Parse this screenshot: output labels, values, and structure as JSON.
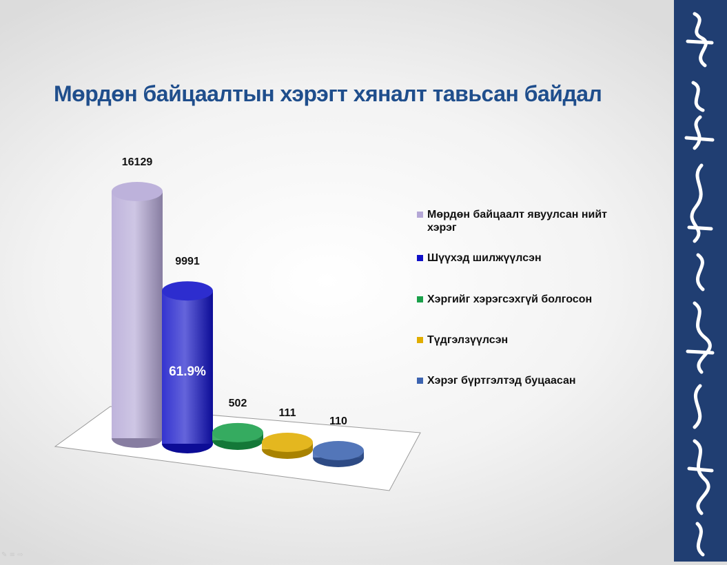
{
  "title": "Мөрдөн байцаалтын хэрэгт хяналт тавьсан байдал",
  "chart_data": {
    "type": "bar",
    "title": "Мөрдөн байцаалтын хэрэгт хяналт тавьсан байдал",
    "categories": [
      "Мөрдөн байцаалт явуулсан нийт хэрэг",
      "Шүүхэд шилжүүлсэн",
      "Хэргийг хэрэгсэхгүй болгосон",
      "Түдгэлзүүлсэн",
      "Хэрэг бүртгэлтэд буцаасан"
    ],
    "values": [
      16129,
      9991,
      502,
      111,
      110
    ],
    "value_labels": [
      "16129",
      "9991",
      "502",
      "111",
      "110"
    ],
    "colors": [
      "#b4a7d6",
      "#1010c8",
      "#1aa04a",
      "#e0ad00",
      "#3c63b0"
    ],
    "annotation": "61.9%",
    "legend_position": "right",
    "grid": false
  },
  "legend": [
    {
      "label": "Мөрдөн байцаалт явуулсан нийт хэрэг",
      "color": "#b4a7d6"
    },
    {
      "label": "Шүүхэд шилжүүлсэн",
      "color": "#1010c8"
    },
    {
      "label": "Хэргийг хэрэгсэхгүй болгосон",
      "color": "#1aa04a"
    },
    {
      "label": "Түдгэлзүүлсэн",
      "color": "#e0ad00"
    },
    {
      "label": "Хэрэг бүртгэлтэд буцаасан",
      "color": "#3c63b0"
    }
  ],
  "side_panel": {
    "color": "#203e72",
    "content": "mongolian-script-decoration"
  }
}
